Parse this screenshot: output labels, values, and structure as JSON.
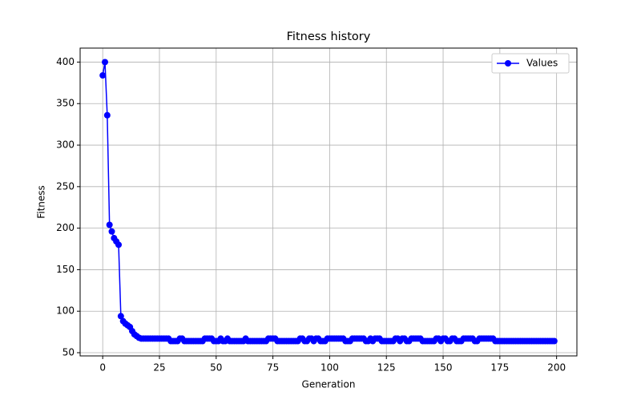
{
  "chart_data": {
    "type": "line",
    "title": "Fitness history",
    "xlabel": "Generation",
    "ylabel": "Fitness",
    "x": [
      0,
      1,
      2,
      3,
      4,
      5,
      6,
      7,
      8,
      9,
      10,
      11,
      12,
      13,
      14,
      15,
      16,
      17,
      18,
      19,
      20,
      21,
      22,
      23,
      24,
      25,
      26,
      27,
      28,
      29,
      30,
      31,
      32,
      33,
      34,
      35,
      36,
      37,
      38,
      39,
      40,
      41,
      42,
      43,
      44,
      45,
      46,
      47,
      48,
      49,
      50,
      51,
      52,
      53,
      54,
      55,
      56,
      57,
      58,
      59,
      60,
      61,
      62,
      63,
      64,
      65,
      66,
      67,
      68,
      69,
      70,
      71,
      72,
      73,
      74,
      75,
      76,
      77,
      78,
      79,
      80,
      81,
      82,
      83,
      84,
      85,
      86,
      87,
      88,
      89,
      90,
      91,
      92,
      93,
      94,
      95,
      96,
      97,
      98,
      99,
      100,
      101,
      102,
      103,
      104,
      105,
      106,
      107,
      108,
      109,
      110,
      111,
      112,
      113,
      114,
      115,
      116,
      117,
      118,
      119,
      120,
      121,
      122,
      123,
      124,
      125,
      126,
      127,
      128,
      129,
      130,
      131,
      132,
      133,
      134,
      135,
      136,
      137,
      138,
      139,
      140,
      141,
      142,
      143,
      144,
      145,
      146,
      147,
      148,
      149,
      150,
      151,
      152,
      153,
      154,
      155,
      156,
      157,
      158,
      159,
      160,
      161,
      162,
      163,
      164,
      165,
      166,
      167,
      168,
      169,
      170,
      171,
      172,
      173,
      174,
      175,
      176,
      177,
      178,
      179,
      180,
      181,
      182,
      183,
      184,
      185,
      186,
      187,
      188,
      189,
      190,
      191,
      192,
      193,
      194,
      195,
      196,
      197,
      198,
      199
    ],
    "series": [
      {
        "name": "Values",
        "color": "#0000ff",
        "values": [
          384,
          400,
          336,
          204,
          196,
          188,
          184,
          180,
          94,
          88,
          85,
          83,
          81,
          76,
          72,
          70,
          68,
          67,
          67,
          67,
          67,
          67,
          67,
          67,
          67,
          67,
          67,
          67,
          67,
          67,
          64,
          64,
          64,
          64,
          67,
          67,
          64,
          64,
          64,
          64,
          64,
          64,
          64,
          64,
          64,
          67,
          67,
          67,
          67,
          64,
          64,
          64,
          67,
          64,
          64,
          67,
          64,
          64,
          64,
          64,
          64,
          64,
          64,
          67,
          64,
          64,
          64,
          64,
          64,
          64,
          64,
          64,
          64,
          67,
          67,
          67,
          67,
          64,
          64,
          64,
          64,
          64,
          64,
          64,
          64,
          64,
          64,
          67,
          67,
          64,
          64,
          67,
          67,
          64,
          67,
          67,
          64,
          64,
          64,
          67,
          67,
          67,
          67,
          67,
          67,
          67,
          67,
          64,
          64,
          64,
          67,
          67,
          67,
          67,
          67,
          67,
          64,
          64,
          67,
          64,
          67,
          67,
          67,
          64,
          64,
          64,
          64,
          64,
          64,
          67,
          67,
          64,
          67,
          67,
          64,
          64,
          67,
          67,
          67,
          67,
          67,
          64,
          64,
          64,
          64,
          64,
          64,
          67,
          67,
          64,
          67,
          67,
          64,
          64,
          67,
          67,
          64,
          64,
          64,
          67,
          67,
          67,
          67,
          67,
          64,
          64,
          67,
          67,
          67,
          67,
          67,
          67,
          67,
          64,
          64,
          64,
          64,
          64,
          64,
          64,
          64,
          64,
          64,
          64,
          64,
          64,
          64,
          64,
          64,
          64,
          64,
          64,
          64,
          64,
          64,
          64,
          64,
          64,
          64,
          64
        ]
      }
    ],
    "xlim": [
      -9.95,
      208.95
    ],
    "xticks": [
      0,
      25,
      50,
      75,
      100,
      125,
      150,
      175,
      200
    ],
    "ylim": [
      46.15,
      416.85
    ],
    "yticks": [
      50,
      100,
      150,
      200,
      250,
      300,
      350,
      400
    ],
    "grid": true,
    "legend": "upper right"
  }
}
